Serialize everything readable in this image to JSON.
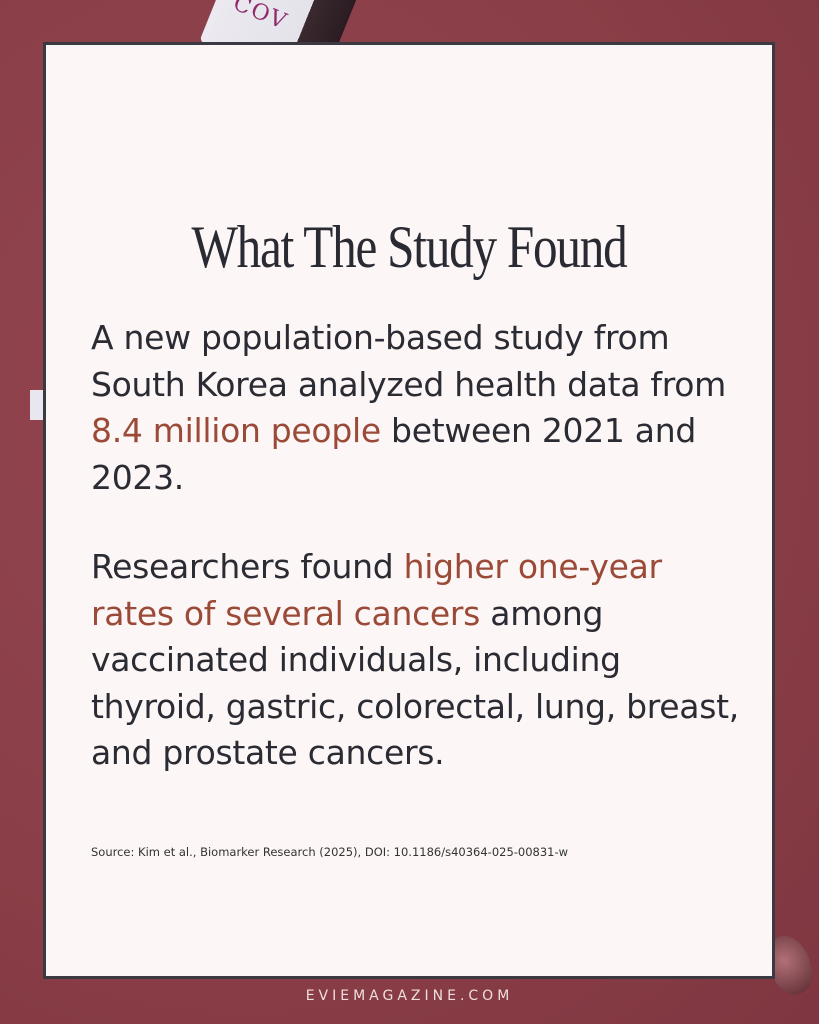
{
  "background": {
    "color": "#8a3e47",
    "vial_label": "COV"
  },
  "card": {
    "title": "What The Study Found",
    "paragraph1": {
      "before": "A new population-based study from South Korea analyzed health data from ",
      "highlight": "8.4 million people",
      "after": " between 2021 and 2023."
    },
    "paragraph2": {
      "before": "Researchers found ",
      "highlight": "higher one-year rates of several cancers",
      "after": " among vaccinated individuals, including thyroid, gastric, colorectal, lung, breast, and prostate cancers."
    },
    "source": "Source: Kim et al., Biomarker Research (2025), DOI: 10.1186/s40364-025-00831-w",
    "accent_color": "#9b4a37"
  },
  "footer": {
    "site": "EVIEMAGAZINE.COM"
  }
}
